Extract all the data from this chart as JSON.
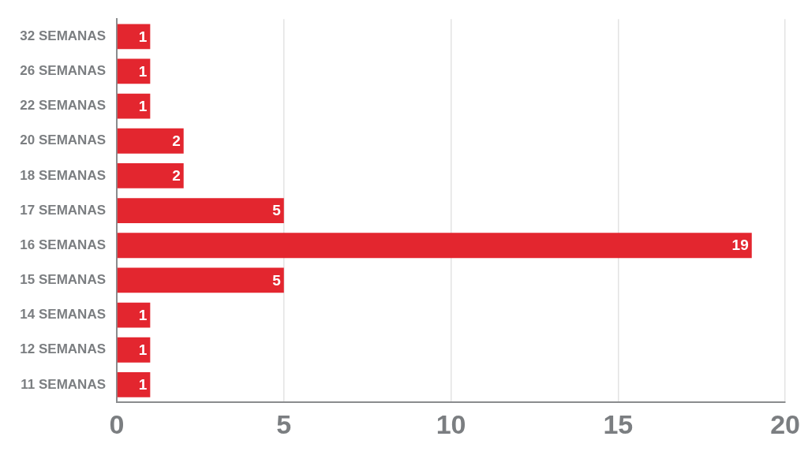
{
  "chart_data": {
    "type": "bar",
    "orientation": "horizontal",
    "categories": [
      "32 SEMANAS",
      "26 SEMANAS",
      "22 SEMANAS",
      "20 SEMANAS",
      "18 SEMANAS",
      "17 SEMANAS",
      "16 SEMANAS",
      "15 SEMANAS",
      "14 SEMANAS",
      "12 SEMANAS",
      "11 SEMANAS"
    ],
    "values": [
      1,
      1,
      1,
      2,
      2,
      5,
      19,
      5,
      1,
      1,
      1
    ],
    "color": "#e3262f",
    "xlim": [
      0,
      20
    ],
    "xticks": [
      0,
      5,
      10,
      15,
      20
    ],
    "grid": "x",
    "data_labels": true
  }
}
